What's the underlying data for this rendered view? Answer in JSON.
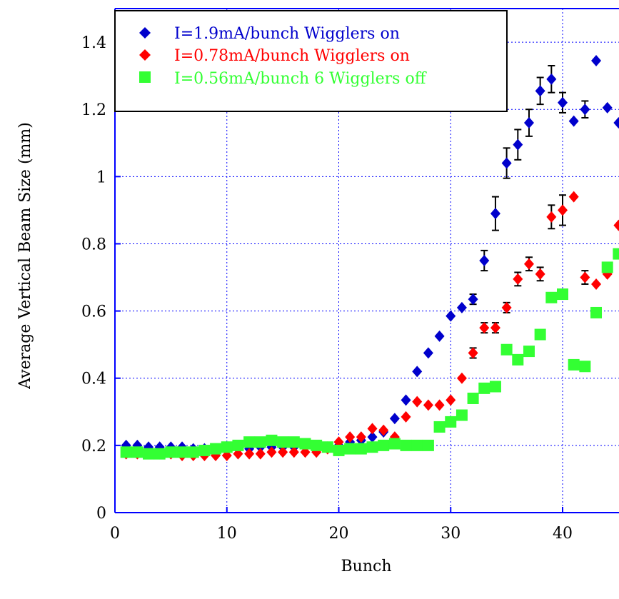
{
  "chart_data": {
    "type": "scatter",
    "title": "",
    "xlabel": "Bunch",
    "ylabel": "Average Vertical Beam Size (mm)",
    "xlim": [
      0,
      45
    ],
    "ylim": [
      0,
      1.5
    ],
    "xticks": [
      0,
      10,
      20,
      30,
      40
    ],
    "yticks": [
      0,
      0.2,
      0.4,
      0.6,
      0.8,
      1,
      1.2,
      1.4
    ],
    "xtick_labels": [
      "0",
      "10",
      "20",
      "30",
      "40"
    ],
    "ytick_labels": [
      "0",
      "0.2",
      "0.4",
      "0.6",
      "0.8",
      "1",
      "1.2",
      "1.4"
    ],
    "grid": true,
    "legend_position": "top-left",
    "series": [
      {
        "name": "I=1.9mA/bunch Wigglers on",
        "color": "#0000cc",
        "marker": "diamond",
        "x": [
          1,
          2,
          3,
          4,
          5,
          6,
          7,
          8,
          9,
          10,
          11,
          12,
          13,
          14,
          15,
          16,
          17,
          18,
          19,
          20,
          21,
          22,
          23,
          24,
          25,
          26,
          27,
          28,
          29,
          30,
          31,
          32,
          33,
          34,
          35,
          36,
          37,
          38,
          39,
          40,
          41,
          42,
          43,
          44,
          45
        ],
        "y": [
          0.2,
          0.2,
          0.195,
          0.195,
          0.195,
          0.195,
          0.19,
          0.19,
          0.19,
          0.19,
          0.19,
          0.19,
          0.195,
          0.195,
          0.195,
          0.195,
          0.195,
          0.195,
          0.195,
          0.2,
          0.21,
          0.215,
          0.225,
          0.24,
          0.28,
          0.335,
          0.42,
          0.475,
          0.525,
          0.585,
          0.61,
          0.635,
          0.75,
          0.89,
          1.04,
          1.095,
          1.16,
          1.255,
          1.29,
          1.22,
          1.165,
          1.2,
          1.345,
          1.205,
          1.16
        ],
        "err": [
          0,
          0,
          0,
          0,
          0,
          0,
          0,
          0,
          0,
          0,
          0,
          0,
          0,
          0,
          0,
          0,
          0,
          0,
          0,
          0,
          0,
          0,
          0,
          0,
          0,
          0,
          0,
          0,
          0,
          0,
          0,
          0.015,
          0.03,
          0.05,
          0.045,
          0.045,
          0.04,
          0.04,
          0.04,
          0.03,
          0,
          0.025,
          0,
          0,
          0
        ]
      },
      {
        "name": "I=0.78mA/bunch Wigglers on",
        "color": "#ff0000",
        "marker": "diamond",
        "x": [
          1,
          2,
          3,
          4,
          5,
          6,
          7,
          8,
          9,
          10,
          11,
          12,
          13,
          14,
          15,
          16,
          17,
          18,
          19,
          20,
          21,
          22,
          23,
          24,
          25,
          26,
          27,
          28,
          29,
          30,
          31,
          32,
          33,
          34,
          35,
          36,
          37,
          38,
          39,
          40,
          41,
          42,
          43,
          44,
          45
        ],
        "y": [
          0.175,
          0.175,
          0.175,
          0.175,
          0.175,
          0.17,
          0.17,
          0.17,
          0.17,
          0.17,
          0.175,
          0.175,
          0.175,
          0.18,
          0.18,
          0.18,
          0.18,
          0.18,
          0.19,
          0.21,
          0.225,
          0.225,
          0.25,
          0.245,
          0.225,
          0.285,
          0.33,
          0.32,
          0.32,
          0.335,
          0.4,
          0.475,
          0.55,
          0.55,
          0.61,
          0.695,
          0.74,
          0.71,
          0.88,
          0.9,
          0.94,
          0.7,
          0.68,
          0.71,
          0.855
        ],
        "err": [
          0,
          0,
          0,
          0,
          0,
          0,
          0,
          0,
          0,
          0,
          0,
          0,
          0,
          0,
          0,
          0,
          0,
          0,
          0,
          0,
          0,
          0,
          0,
          0,
          0,
          0,
          0,
          0,
          0,
          0,
          0,
          0.015,
          0.015,
          0.015,
          0.015,
          0.02,
          0.02,
          0.02,
          0.035,
          0.045,
          0,
          0.02,
          0,
          0,
          0
        ]
      },
      {
        "name": "I=0.56mA/bunch 6 Wigglers off",
        "color": "#33ff33",
        "marker": "square",
        "x": [
          1,
          2,
          3,
          4,
          5,
          6,
          7,
          8,
          9,
          10,
          11,
          12,
          13,
          14,
          15,
          16,
          17,
          18,
          19,
          20,
          21,
          22,
          23,
          24,
          25,
          26,
          27,
          28,
          29,
          30,
          31,
          32,
          33,
          34,
          35,
          36,
          37,
          38,
          39,
          40,
          41,
          42,
          43,
          44,
          45
        ],
        "y": [
          0.18,
          0.18,
          0.175,
          0.175,
          0.18,
          0.18,
          0.18,
          0.185,
          0.19,
          0.195,
          0.2,
          0.21,
          0.21,
          0.215,
          0.21,
          0.21,
          0.205,
          0.2,
          0.195,
          0.185,
          0.19,
          0.19,
          0.195,
          0.2,
          0.205,
          0.2,
          0.2,
          0.2,
          0.255,
          0.27,
          0.29,
          0.34,
          0.37,
          0.375,
          0.485,
          0.455,
          0.48,
          0.53,
          0.64,
          0.65,
          0.44,
          0.435,
          0.595,
          0.73,
          0.77
        ],
        "err": [
          0,
          0,
          0,
          0,
          0,
          0,
          0,
          0,
          0,
          0,
          0,
          0,
          0,
          0,
          0,
          0,
          0,
          0,
          0,
          0,
          0,
          0,
          0,
          0,
          0,
          0,
          0,
          0,
          0,
          0,
          0,
          0,
          0,
          0,
          0,
          0,
          0,
          0,
          0,
          0,
          0,
          0,
          0,
          0,
          0
        ]
      }
    ]
  }
}
